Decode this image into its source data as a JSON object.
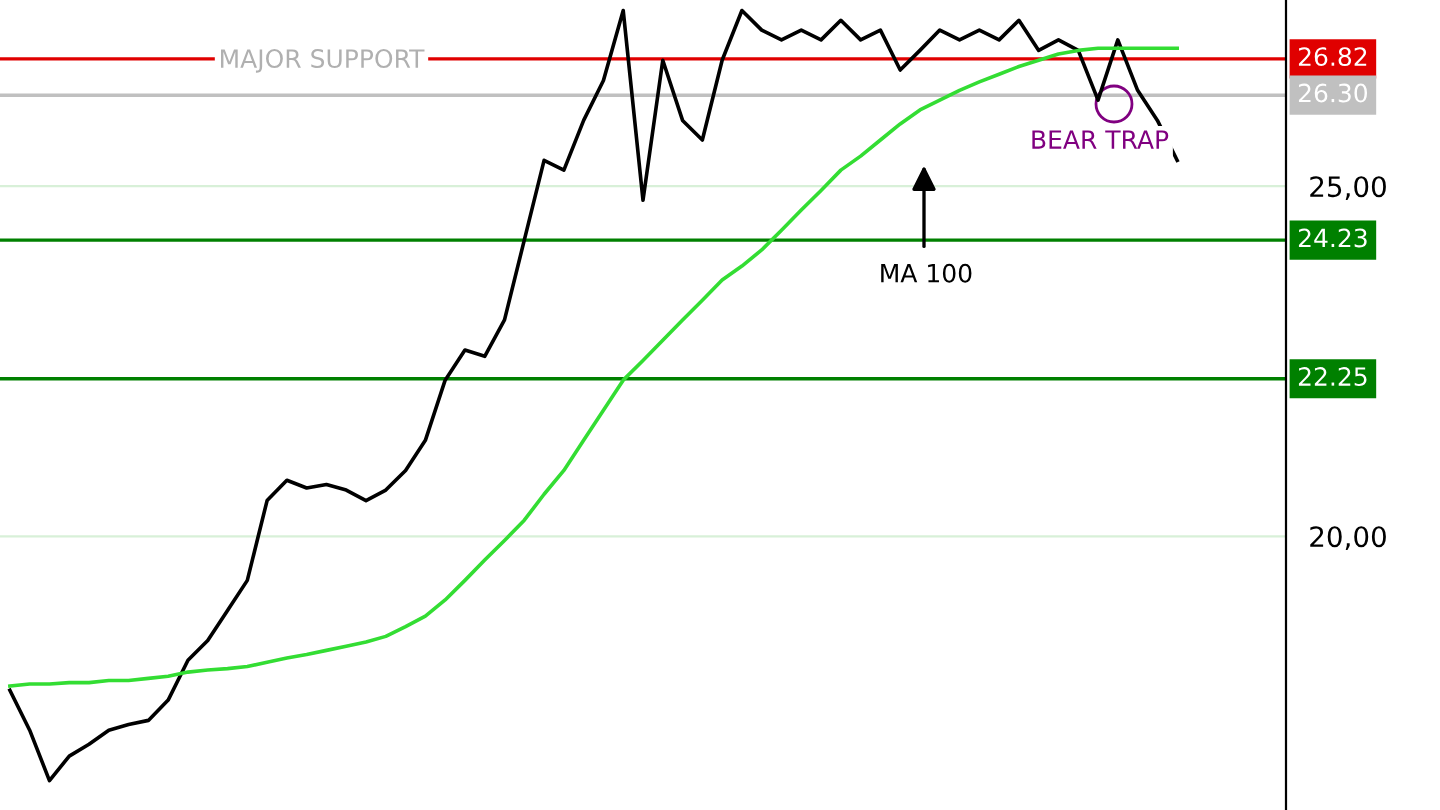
{
  "chart_data": {
    "type": "line",
    "categories": [
      null,
      null,
      null,
      null,
      null,
      null,
      null,
      null,
      null,
      null,
      null,
      null,
      null,
      null,
      null,
      null,
      null,
      null,
      null,
      null,
      null,
      null,
      null,
      null,
      null,
      null,
      null,
      null,
      null,
      null,
      null,
      null,
      null,
      null,
      null,
      null,
      null,
      null,
      null,
      null,
      null,
      null,
      null,
      null,
      null,
      null,
      null,
      null,
      null,
      null,
      null,
      null,
      null,
      null,
      null,
      null,
      null,
      null,
      null,
      null,
      null,
      null,
      null,
      null,
      null
    ],
    "series": [
      {
        "color": "#000000",
        "values": [
          17.8,
          17.23,
          16.51,
          16.86,
          17.03,
          17.23,
          17.31,
          17.37,
          17.66,
          18.23,
          18.51,
          18.94,
          19.37,
          20.51,
          20.8,
          20.69,
          20.74,
          20.66,
          20.51,
          20.66,
          20.94,
          21.37,
          22.23,
          22.66,
          22.57,
          23.09,
          24.23,
          25.37,
          25.23,
          25.94,
          26.51,
          27.51,
          24.8,
          26.8,
          25.94,
          25.66,
          26.8,
          27.51,
          27.23,
          27.09,
          27.23,
          27.09,
          27.37,
          27.09,
          27.23,
          26.66,
          26.94,
          27.23,
          27.09,
          27.23,
          27.09,
          27.37,
          26.94,
          27.09,
          26.94,
          26.23,
          27.09,
          26.37,
          25.94,
          25.37,
          null,
          null,
          null,
          null,
          null
        ]
      },
      {
        "color": "#33dd33",
        "values": [
          17.86,
          17.89,
          17.89,
          17.91,
          17.91,
          17.94,
          17.94,
          17.97,
          18.0,
          18.06,
          18.09,
          18.11,
          18.14,
          18.2,
          18.26,
          18.31,
          18.37,
          18.43,
          18.49,
          18.57,
          18.71,
          18.86,
          19.09,
          19.37,
          19.66,
          19.94,
          20.23,
          20.6,
          20.94,
          21.37,
          21.8,
          22.23,
          22.51,
          22.8,
          23.09,
          23.37,
          23.66,
          23.86,
          24.09,
          24.37,
          24.66,
          24.94,
          25.23,
          25.43,
          25.66,
          25.89,
          26.09,
          26.23,
          26.37,
          26.49,
          26.6,
          26.71,
          26.8,
          26.89,
          26.94,
          26.97,
          26.97,
          26.97,
          26.97,
          26.97,
          null,
          null,
          null,
          null,
          null
        ]
      }
    ],
    "ylim": [
      16.09,
      27.66
    ],
    "yticks": [
      {
        "value": 20,
        "label": "20,00"
      },
      {
        "value": 25,
        "label": "25,00"
      }
    ],
    "grid": "y",
    "ref_lines": [
      {
        "axis": "y",
        "value": 26.82,
        "label": "26.82",
        "color": "#e00000"
      },
      {
        "axis": "y",
        "value": 26.3,
        "label": "26.30",
        "color": "#c0c0c0"
      },
      {
        "axis": "y",
        "value": 24.23,
        "label": "24.23",
        "color": "#008000"
      },
      {
        "axis": "y",
        "value": 22.25,
        "label": "22.25",
        "color": "#008000"
      }
    ],
    "annotations": [
      "MAJOR SUPPORT",
      "BEAR TRAP",
      "MA 100"
    ]
  }
}
